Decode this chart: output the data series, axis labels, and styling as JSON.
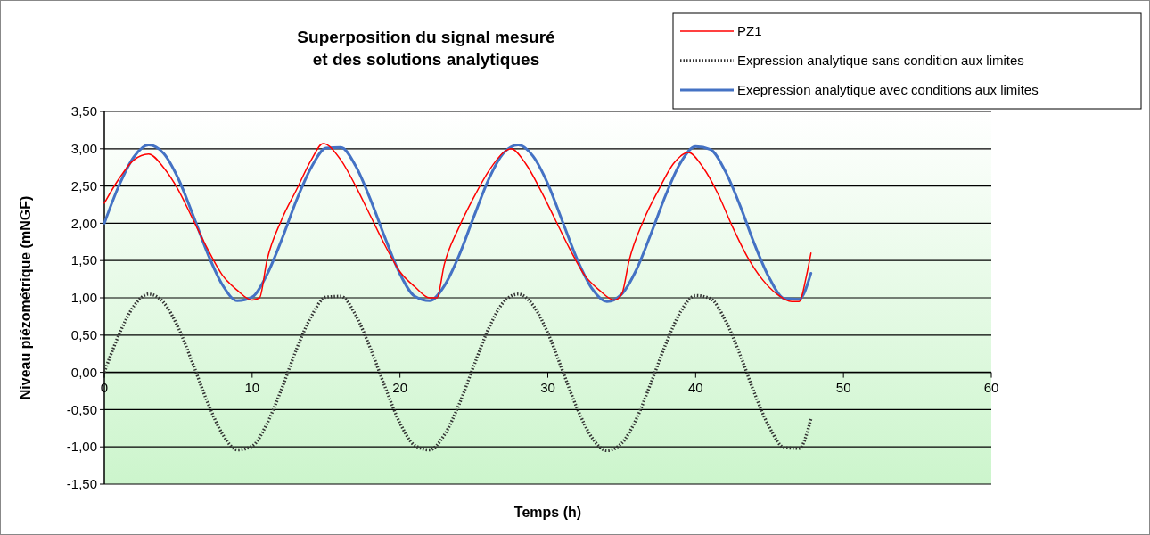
{
  "chart_data": {
    "type": "line",
    "title": "Superposition du signal mesuré\net des solutions analytiques",
    "xlabel": "Temps (h)",
    "ylabel": "Niveau piézométrique (mNGF)",
    "xlim": [
      0,
      60
    ],
    "xticks": [
      0,
      10,
      20,
      30,
      40,
      50,
      60
    ],
    "ylim": [
      -1.5,
      3.5
    ],
    "yticks": [
      {
        "value": -1.5,
        "label": "-1,50"
      },
      {
        "value": -1,
        "label": "-1,00"
      },
      {
        "value": -0.5,
        "label": "-0,50"
      },
      {
        "value": 0,
        "label": "0,00"
      },
      {
        "value": 0.5,
        "label": "0,50"
      },
      {
        "value": 1,
        "label": "1,00"
      },
      {
        "value": 1.5,
        "label": "1,50"
      },
      {
        "value": 2,
        "label": "2,00"
      },
      {
        "value": 2.5,
        "label": "2,50"
      },
      {
        "value": 3,
        "label": "3,00"
      },
      {
        "value": 3.5,
        "label": "3,50"
      }
    ],
    "grid": "y",
    "legend": "top right",
    "marker": "none",
    "series": [
      {
        "name": "PZ1",
        "color": "#ff0000",
        "line_style": "solid",
        "x": [
          0,
          1,
          2,
          3,
          4,
          5,
          6,
          7,
          8,
          9,
          10,
          10.5,
          11,
          12,
          13,
          14,
          14.8,
          16,
          17,
          18,
          19,
          20,
          21,
          22,
          22.5,
          23,
          24,
          25,
          26,
          27,
          27.5,
          28.5,
          29.5,
          30.5,
          31.5,
          32.5,
          33.5,
          34.5,
          35,
          35.5,
          36.5,
          37.5,
          38.5,
          39.5,
          40.5,
          41.5,
          42.5,
          43.5,
          44.5,
          45.5,
          46.5,
          47,
          47.5,
          47.8
        ],
        "values": [
          2.27,
          2.6,
          2.85,
          2.93,
          2.75,
          2.45,
          2.05,
          1.65,
          1.3,
          1.1,
          0.97,
          1.0,
          1.5,
          2.05,
          2.45,
          2.85,
          3.07,
          2.85,
          2.5,
          2.1,
          1.7,
          1.35,
          1.15,
          1.0,
          1.0,
          1.45,
          1.95,
          2.35,
          2.7,
          2.95,
          3.0,
          2.8,
          2.45,
          2.05,
          1.65,
          1.3,
          1.1,
          0.97,
          1.05,
          1.5,
          2.05,
          2.45,
          2.8,
          2.95,
          2.75,
          2.4,
          1.95,
          1.55,
          1.25,
          1.05,
          0.95,
          0.95,
          1.3,
          1.6
        ]
      },
      {
        "name": "Expression analytique sans condition aux limites",
        "color": "#333333",
        "line_style": "dotted",
        "x": [
          0,
          1,
          2,
          3,
          4,
          5,
          6,
          7,
          8,
          9,
          10,
          11,
          12,
          13,
          14,
          15,
          16,
          17,
          18,
          19,
          20,
          21,
          22,
          23,
          24,
          25,
          26,
          27,
          28,
          29,
          30,
          31,
          32,
          33,
          34,
          35,
          36,
          37,
          38,
          39,
          40,
          41,
          42,
          43,
          44,
          45,
          46,
          47,
          47.8
        ],
        "values": [
          0,
          0.51,
          0.89,
          1.05,
          0.94,
          0.6,
          0.11,
          -0.41,
          -0.83,
          -1.04,
          -0.99,
          -0.69,
          -0.22,
          0.31,
          0.75,
          1.01,
          1.02,
          0.77,
          0.32,
          -0.2,
          -0.68,
          -0.98,
          -1.04,
          -0.84,
          -0.43,
          0.09,
          0.59,
          0.94,
          1.05,
          0.9,
          0.53,
          0.02,
          -0.49,
          -0.88,
          -1.05,
          -0.95,
          -0.62,
          -0.13,
          0.39,
          0.82,
          1.03,
          0.99,
          0.7,
          0.24,
          -0.29,
          -0.74,
          -1.01,
          -1.02,
          -0.62
        ]
      },
      {
        "name": "Exepression analytique avec conditions aux limites",
        "color": "#4472c4",
        "line_style": "solid",
        "x": [
          0,
          1,
          2,
          3,
          4,
          5,
          6,
          7,
          8,
          9,
          10,
          11,
          12,
          13,
          14,
          15,
          16,
          17,
          18,
          19,
          20,
          21,
          22,
          23,
          24,
          25,
          26,
          27,
          28,
          29,
          30,
          31,
          32,
          33,
          34,
          35,
          36,
          37,
          38,
          39,
          40,
          41,
          42,
          43,
          44,
          45,
          46,
          47,
          47.8
        ],
        "values": [
          2.0,
          2.51,
          2.89,
          3.05,
          2.94,
          2.6,
          2.11,
          1.59,
          1.17,
          0.96,
          1.01,
          1.31,
          1.78,
          2.31,
          2.75,
          3.01,
          3.02,
          2.77,
          2.32,
          1.8,
          1.32,
          1.02,
          0.96,
          1.16,
          1.57,
          2.09,
          2.59,
          2.94,
          3.05,
          2.9,
          2.53,
          2.02,
          1.51,
          1.12,
          0.95,
          1.05,
          1.38,
          1.87,
          2.39,
          2.82,
          3.03,
          2.99,
          2.7,
          2.24,
          1.71,
          1.26,
          0.99,
          0.98,
          1.33
        ]
      }
    ]
  }
}
